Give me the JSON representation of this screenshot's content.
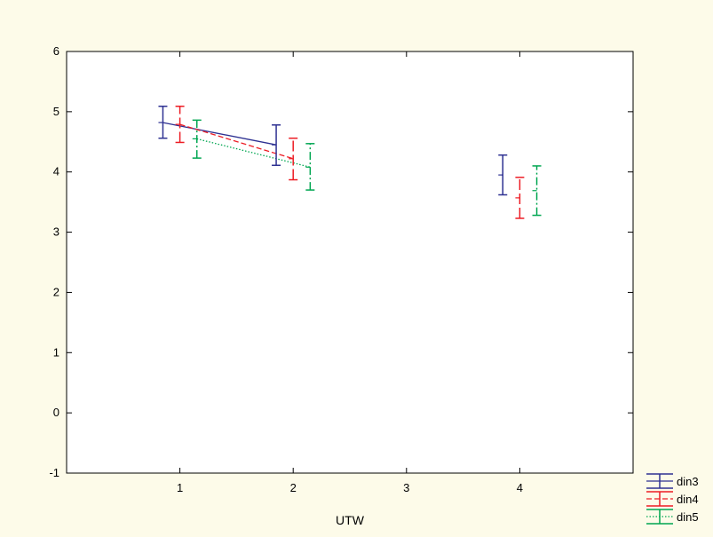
{
  "chart_data": {
    "type": "line",
    "title": "",
    "xlabel": "UTW",
    "ylabel": "",
    "xlim": [
      0,
      5
    ],
    "ylim": [
      -1,
      6
    ],
    "x_ticks": [
      1,
      2,
      3,
      4
    ],
    "y_ticks": [
      -1,
      0,
      1,
      2,
      3,
      4,
      5,
      6
    ],
    "grid": false,
    "legend_position": "bottom-right",
    "series": [
      {
        "name": "din3",
        "color": "#2e3192",
        "dash": "solid",
        "offset": -0.15,
        "points": [
          {
            "x": 1,
            "y": 4.82,
            "low": 4.56,
            "high": 5.09
          },
          {
            "x": 2,
            "y": 4.45,
            "low": 4.11,
            "high": 4.78
          },
          {
            "x": 4,
            "y": 3.95,
            "low": 3.62,
            "high": 4.28
          }
        ]
      },
      {
        "name": "din4",
        "color": "#ed1c24",
        "dash": "dashed",
        "offset": 0,
        "points": [
          {
            "x": 1,
            "y": 4.79,
            "low": 4.49,
            "high": 5.09
          },
          {
            "x": 2,
            "y": 4.22,
            "low": 3.87,
            "high": 4.56
          },
          {
            "x": 4,
            "y": 3.57,
            "low": 3.23,
            "high": 3.91
          }
        ]
      },
      {
        "name": "din5",
        "color": "#00a651",
        "dash": "dotted",
        "offset": 0.15,
        "points": [
          {
            "x": 1,
            "y": 4.55,
            "low": 4.23,
            "high": 4.86
          },
          {
            "x": 2,
            "y": 4.08,
            "low": 3.7,
            "high": 4.47
          },
          {
            "x": 4,
            "y": 3.69,
            "low": 3.28,
            "high": 4.1
          }
        ]
      }
    ],
    "connected_x": [
      1,
      2
    ]
  }
}
